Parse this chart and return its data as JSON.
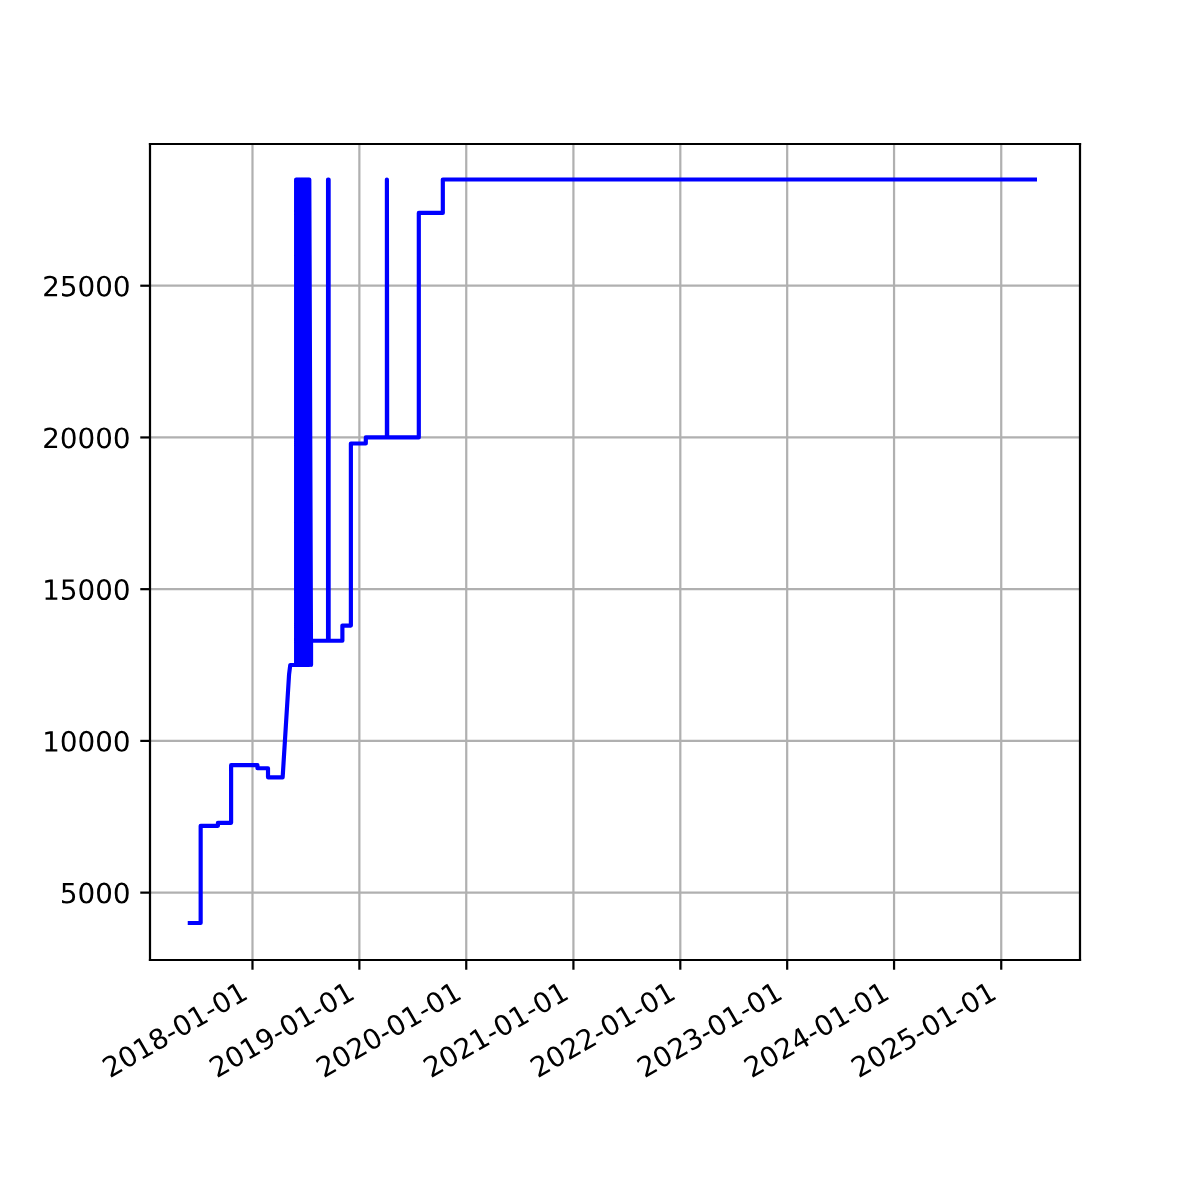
{
  "chart_data": {
    "type": "line",
    "x": [
      "2017-06-01",
      "2017-07-08",
      "2017-07-08",
      "2017-09-05",
      "2017-09-05",
      "2017-10-20",
      "2017-10-20",
      "2018-01-18",
      "2018-01-18",
      "2018-02-23",
      "2018-02-23",
      "2018-04-14",
      "2018-04-25",
      "2018-05-06",
      "2018-05-10",
      "2018-05-30",
      "2018-05-30",
      "2018-06-04",
      "2018-06-04",
      "2018-06-09",
      "2018-06-09",
      "2018-06-14",
      "2018-06-14",
      "2018-06-19",
      "2018-06-19",
      "2018-06-24",
      "2018-06-24",
      "2018-06-29",
      "2018-06-29",
      "2018-07-04",
      "2018-07-04",
      "2018-07-09",
      "2018-07-09",
      "2018-07-14",
      "2018-07-14",
      "2018-07-20",
      "2018-07-20",
      "2018-09-16",
      "2018-09-16",
      "2018-09-18",
      "2018-09-18",
      "2018-11-04",
      "2018-11-04",
      "2018-12-03",
      "2018-12-03",
      "2019-01-23",
      "2019-01-23",
      "2019-04-05",
      "2019-04-05",
      "2019-04-06",
      "2019-07-23",
      "2019-07-23",
      "2019-10-13",
      "2019-10-13",
      "2025-04-26"
    ],
    "series": [
      {
        "color": "#0000ff",
        "values": [
          4000,
          4000,
          7200,
          7200,
          7300,
          7300,
          9200,
          9200,
          9100,
          9100,
          8800,
          8800,
          10500,
          12200,
          12500,
          12500,
          28500,
          12500,
          28500,
          12500,
          28500,
          12500,
          28500,
          12500,
          28500,
          12500,
          28500,
          12500,
          28500,
          12500,
          28500,
          12500,
          28500,
          12500,
          28500,
          12500,
          13300,
          13300,
          28500,
          28500,
          13300,
          13300,
          13800,
          13800,
          19800,
          19800,
          20000,
          20000,
          28500,
          20000,
          20000,
          27400,
          27400,
          28500,
          28500
        ]
      }
    ],
    "xlim": [
      "2017-01-16",
      "2025-09-27"
    ],
    "xticks": [
      "2018-01-01",
      "2019-01-01",
      "2020-01-01",
      "2021-01-01",
      "2022-01-01",
      "2023-01-01",
      "2024-01-01",
      "2025-01-01"
    ],
    "ylim": [
      2780,
      29670
    ],
    "yticks": [
      5000,
      10000,
      15000,
      20000,
      25000
    ],
    "grid": true,
    "marker": "none",
    "line_style": "solid"
  }
}
